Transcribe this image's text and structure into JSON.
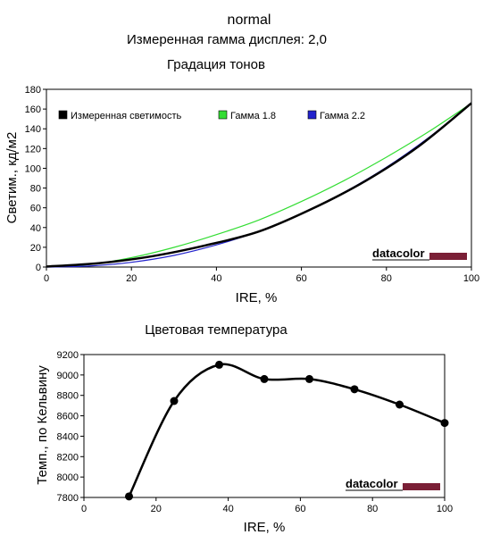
{
  "header": {
    "title": "normal",
    "subtitle": "Измеренная гамма дисплея: 2,0"
  },
  "chart_data": [
    {
      "type": "line",
      "title": "Градация тонов",
      "xlabel": "IRE, %",
      "ylabel": "Светим., кд/м2",
      "xlim": [
        0,
        100
      ],
      "ylim": [
        0,
        180
      ],
      "xticks": [
        0,
        20,
        40,
        60,
        80,
        100
      ],
      "yticks": [
        0,
        20,
        40,
        60,
        80,
        100,
        120,
        140,
        160,
        180
      ],
      "grid": false,
      "legend_position": "top",
      "watermark": "datacolor",
      "series": [
        {
          "name": "Измеренная светимость",
          "color": "#000000",
          "x": [
            0,
            12.5,
            25,
            37.5,
            50,
            62.5,
            75,
            87.5,
            100
          ],
          "y": [
            0.5,
            4,
            11,
            22,
            36,
            59,
            87,
            122,
            166
          ]
        },
        {
          "name": "Гамма 1.8",
          "color": "#33dd33",
          "x": [
            0,
            10,
            20,
            30,
            40,
            50,
            60,
            70,
            80,
            90,
            100
          ],
          "y": [
            0,
            2.6,
            9.5,
            19.9,
            32.8,
            47.7,
            66.4,
            87.5,
            111.3,
            137.2,
            166
          ]
        },
        {
          "name": "Гамма 2.2",
          "color": "#2222cc",
          "x": [
            0,
            10,
            20,
            30,
            40,
            50,
            60,
            70,
            80,
            90,
            100
          ],
          "y": [
            0,
            1,
            4.8,
            11.8,
            22.4,
            36.2,
            53.7,
            75.6,
            101.1,
            131.3,
            166
          ]
        }
      ]
    },
    {
      "type": "line",
      "title": "Цветовая температура",
      "xlabel": "IRE, %",
      "ylabel": "Темп., по Кельвину",
      "xlim": [
        0,
        100
      ],
      "ylim": [
        7800,
        9200
      ],
      "xticks": [
        0,
        20,
        40,
        60,
        80,
        100
      ],
      "yticks": [
        7800,
        8000,
        8200,
        8400,
        8600,
        8800,
        9000,
        9200
      ],
      "grid": false,
      "watermark": "datacolor",
      "series": [
        {
          "color": "#000000",
          "x": [
            12.5,
            25,
            37.5,
            50,
            62.5,
            75,
            87.5,
            100
          ],
          "y": [
            7810,
            8745,
            9100,
            8960,
            8960,
            8860,
            8710,
            8530
          ]
        }
      ]
    }
  ]
}
